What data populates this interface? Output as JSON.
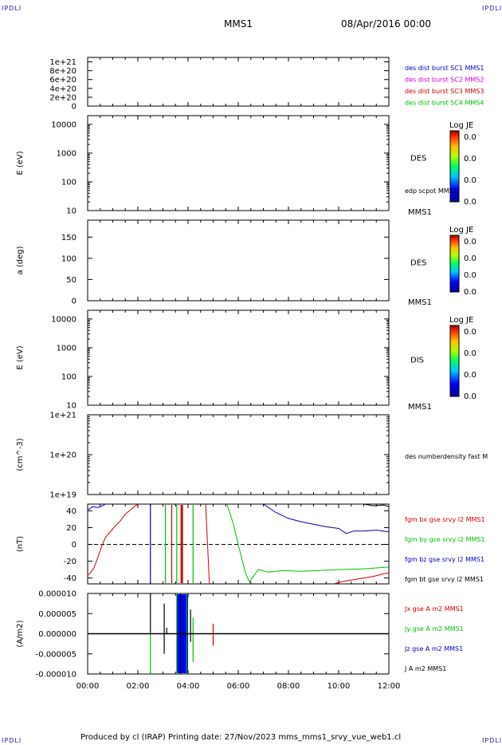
{
  "corners": {
    "tl": "IPDLI",
    "tr": "IPDLI",
    "bl": "IPDLI",
    "br": "IPDLI"
  },
  "header": {
    "spacecraft": "MMS1",
    "date": "08/Apr/2016 00:00"
  },
  "footer": "Produced by cl (IRAP)    Printing date: 27/Nov/2023    mms_mms1_srvy_vue_web1.cl",
  "colors": {
    "blue": "#0000c0",
    "magenta": "#d000d0",
    "red": "#d00000",
    "green": "#00c000",
    "black": "#000000"
  },
  "colorbar": {
    "title": "Log JE",
    "ticks": [
      "0.0",
      "0.0",
      "0.0",
      "0.0"
    ]
  },
  "chart_data": [
    {
      "type": "line",
      "ylabel": "",
      "ytick_labels": [
        "1e+21",
        "8e+20",
        "6e+20",
        "4e+20",
        "2e+20",
        "0"
      ],
      "ylim": [
        0,
        1.1e+21
      ],
      "ticks": [
        1e+21,
        8e+20,
        6e+20,
        4e+20,
        2e+20,
        0
      ],
      "zero_line": true,
      "legend": [
        {
          "name": "des dist burst SC1 MMS1",
          "color": "#0000c0"
        },
        {
          "name": "des dist burst SC2 MMS2",
          "color": "#d000d0"
        },
        {
          "name": "des dist burst SC3 MMS3",
          "color": "#d00000"
        },
        {
          "name": "des dist burst SC4 MMS4",
          "color": "#00c000"
        }
      ]
    },
    {
      "type": "heatmap",
      "scale": "log",
      "ylabel": "E (eV)",
      "ylim": [
        10,
        20000
      ],
      "ticks": [
        10000,
        1000,
        100,
        10
      ],
      "ytick_labels": [
        "10000",
        "1000",
        "100",
        "10"
      ],
      "right_label": "DES",
      "right_label2": "edp scpot MMS1",
      "sc_label": "MMS1"
    },
    {
      "type": "heatmap",
      "scale": "linear",
      "ylabel": "a (deg)",
      "ylim": [
        0,
        190
      ],
      "ticks": [
        150,
        100,
        50,
        0
      ],
      "ytick_labels": [
        "150",
        "100",
        "50",
        "0"
      ],
      "right_label": "DES",
      "sc_label": "MMS1"
    },
    {
      "type": "heatmap",
      "scale": "log",
      "ylabel": "E (eV)",
      "ylim": [
        10,
        20000
      ],
      "ticks": [
        10000,
        1000,
        100,
        10
      ],
      "ytick_labels": [
        "10000",
        "1000",
        "100",
        "10"
      ],
      "right_label": "DIS",
      "sc_label": "MMS1"
    },
    {
      "type": "line",
      "scale": "log",
      "ylabel": "(cm^-3)",
      "ylim": [
        1e+19,
        1e+21
      ],
      "ticks": [
        1e+21,
        1e+20,
        1e+19
      ],
      "ytick_labels": [
        "1e+21",
        "1e+20",
        "1e+19"
      ],
      "legend": [
        {
          "name": "des numberdensity fast M",
          "color": "#000000"
        }
      ]
    },
    {
      "type": "line",
      "ylabel": "(nT)",
      "ylim": [
        -47,
        48
      ],
      "ticks": [
        40,
        20,
        0,
        -20,
        -40
      ],
      "ytick_labels": [
        "40",
        "20",
        "0",
        "-20",
        "-40"
      ],
      "zero_line": true,
      "legend": [
        {
          "name": "fgm bx gse srvy l2 MMS1",
          "color": "#d00000"
        },
        {
          "name": "fgm by gse srvy l2 MMS1",
          "color": "#00c000"
        },
        {
          "name": "fgm bz gse srvy l2 MMS1",
          "color": "#0000c0"
        },
        {
          "name": "fgm bt gse srvy l2 MMS1",
          "color": "#000000"
        }
      ],
      "series": [
        {
          "name": "fgm bx gse srvy l2 MMS1",
          "color": "#d00000",
          "x": [
            0,
            0.1,
            0.25,
            0.4,
            0.55,
            0.7,
            0.9,
            1.1,
            1.3,
            1.5,
            1.7,
            1.9,
            2.05
          ],
          "y": [
            -37,
            -34,
            -28,
            -16,
            -3,
            8,
            15,
            22,
            28,
            36,
            41,
            46,
            48
          ]
        },
        {
          "name": "fgm bx gse srvy l2 MMS1",
          "color": "#d00000",
          "x": [
            4.7,
            4.85
          ],
          "y": [
            48,
            -47
          ]
        },
        {
          "name": "fgm bx gse srvy l2 MMS1",
          "color": "#d00000",
          "x": [
            9.8,
            10.2,
            10.6,
            11.0,
            11.4,
            11.8,
            12.0
          ],
          "y": [
            -47,
            -44,
            -42,
            -40,
            -38,
            -35,
            -34
          ]
        },
        {
          "name": "fgm by gse srvy l2 MMS1",
          "color": "#00c000",
          "x": [
            5.55,
            5.8,
            6.0,
            6.15,
            6.3,
            6.45,
            6.6,
            6.8,
            7.2,
            7.8,
            8.5,
            9.2,
            10.0,
            11.0,
            12.0
          ],
          "y": [
            48,
            25,
            0,
            -18,
            -35,
            -45,
            -38,
            -30,
            -33,
            -31,
            -32,
            -31,
            -30,
            -29,
            -27
          ]
        },
        {
          "name": "fgm bz gse srvy l2 MMS1",
          "color": "#0000c0",
          "x": [
            0,
            0.2,
            0.4,
            0.6,
            0.7
          ],
          "y": [
            41,
            45,
            44,
            46,
            48
          ]
        },
        {
          "name": "fgm bz gse srvy l2 MMS1",
          "color": "#0000c0",
          "x": [
            7.0,
            7.5,
            8.0,
            8.5,
            9.0,
            9.5,
            10.0,
            10.3,
            10.6,
            11.0,
            11.5,
            12.0
          ],
          "y": [
            48,
            38,
            31,
            27,
            24,
            21,
            19,
            13,
            16,
            16,
            17,
            15
          ]
        },
        {
          "name": "fgm bt gse srvy l2 MMS1",
          "color": "#000000",
          "x": [
            11.0,
            11.4,
            11.8,
            12.0
          ],
          "y": [
            48,
            46,
            47,
            45
          ]
        }
      ],
      "spikes": [
        {
          "x": 2.5,
          "color": "#0000c0"
        },
        {
          "x": 3.1,
          "color": "#00c000"
        },
        {
          "x": 3.35,
          "color": "#d00000"
        },
        {
          "x": 3.55,
          "color": "#00c000"
        },
        {
          "x": 3.75,
          "color": "#d00000",
          "width": 3
        },
        {
          "x": 4.2,
          "color": "#00c000"
        }
      ]
    },
    {
      "type": "line",
      "ylabel": "(A/m2)",
      "ylim": [
        -1e-05,
        1e-05
      ],
      "ticks": [
        1e-05,
        5e-06,
        0,
        -5e-06,
        -1e-05
      ],
      "ytick_labels": [
        "0.000010",
        "0.000005",
        "0.000000",
        "-0.000005",
        "-0.000010"
      ],
      "legend": [
        {
          "name": "Jx gse A m2 MMS1",
          "color": "#d00000"
        },
        {
          "name": "Jy gse A m2 MMS1",
          "color": "#00c000"
        },
        {
          "name": "Jz gse A m2 MMS1",
          "color": "#0000c0"
        },
        {
          "name": "J A m2 MMS1",
          "color": "#000000"
        }
      ],
      "bands": [
        {
          "x0": 3.55,
          "x1": 4.0,
          "color": "#0000ff"
        }
      ],
      "spikes": [
        {
          "x": 2.5,
          "y0": 0,
          "y1": 1e-05,
          "color": "#000000"
        },
        {
          "x": 2.5,
          "y0": 0,
          "y1": -1e-05,
          "color": "#00c000"
        },
        {
          "x": 3.05,
          "y0": -5e-06,
          "y1": 7.5e-06,
          "color": "#000000"
        },
        {
          "x": 3.15,
          "y0": 0,
          "y1": 1.5e-06,
          "color": "#000000"
        },
        {
          "x": 3.55,
          "y0": -1e-05,
          "y1": 1e-05,
          "color": "#00c000"
        },
        {
          "x": 3.7,
          "y0": -1e-05,
          "y1": 1e-05,
          "color": "#000000"
        },
        {
          "x": 3.95,
          "y0": -1e-05,
          "y1": 1e-05,
          "color": "#00c000"
        },
        {
          "x": 4.1,
          "y0": -2e-06,
          "y1": 6e-06,
          "color": "#000000"
        },
        {
          "x": 4.2,
          "y0": -7e-06,
          "y1": 4e-06,
          "color": "#00c000"
        },
        {
          "x": 5.0,
          "y0": -3e-06,
          "y1": 2.5e-06,
          "color": "#d00000"
        }
      ]
    }
  ],
  "xaxis": {
    "labels": [
      "00:00",
      "02:00",
      "04:00",
      "06:00",
      "08:00",
      "10:00",
      "12:00"
    ],
    "xlim": [
      0,
      12
    ]
  }
}
